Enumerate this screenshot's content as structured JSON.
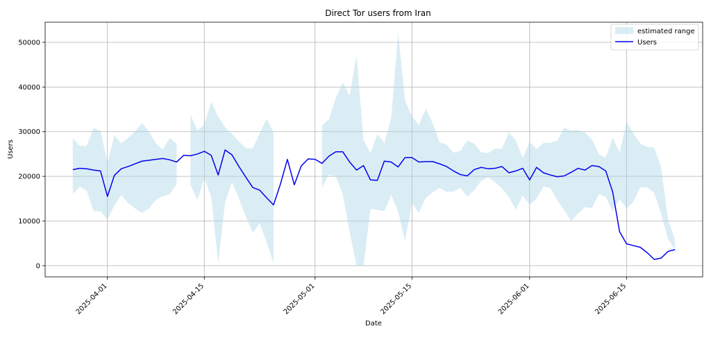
{
  "chart_data": {
    "type": "line",
    "title": "Direct Tor users from Iran",
    "xlabel": "Date",
    "ylabel": "Users",
    "ylim": [
      -2500,
      54500
    ],
    "xlim": [
      "2025-03-23",
      "2025-06-26"
    ],
    "x_ticks": [
      "2025-04-01",
      "2025-04-15",
      "2025-05-01",
      "2025-05-15",
      "2025-06-01",
      "2025-06-15"
    ],
    "y_ticks": [
      0,
      10000,
      20000,
      30000,
      40000,
      50000
    ],
    "y_tick_labels": [
      "0",
      "10000",
      "20000",
      "30000",
      "40000",
      "50000"
    ],
    "grid": true,
    "legend_position": "top-right",
    "legend": {
      "range_label": "estimated range",
      "users_label": "Users"
    },
    "colors": {
      "users_line": "#0000ee",
      "range_fill": "#add8e6"
    },
    "series": [
      {
        "name": "Users",
        "x": [
          "2025-03-27",
          "2025-03-28",
          "2025-03-29",
          "2025-03-30",
          "2025-03-31",
          "2025-04-01",
          "2025-04-02",
          "2025-04-03",
          "2025-04-04",
          "2025-04-05",
          "2025-04-06",
          "2025-04-07",
          "2025-04-08",
          "2025-04-09",
          "2025-04-10",
          "2025-04-11",
          "2025-04-12",
          "2025-04-13",
          "2025-04-14",
          "2025-04-15",
          "2025-04-16",
          "2025-04-17",
          "2025-04-18",
          "2025-04-19",
          "2025-04-20",
          "2025-04-21",
          "2025-04-22",
          "2025-04-23",
          "2025-04-24",
          "2025-04-25",
          "2025-04-26",
          "2025-04-27",
          "2025-04-28",
          "2025-04-29",
          "2025-04-30",
          "2025-05-01",
          "2025-05-02",
          "2025-05-03",
          "2025-05-04",
          "2025-05-05",
          "2025-05-06",
          "2025-05-07",
          "2025-05-08",
          "2025-05-09",
          "2025-05-10",
          "2025-05-11",
          "2025-05-12",
          "2025-05-13",
          "2025-05-14",
          "2025-05-15",
          "2025-05-16",
          "2025-05-17",
          "2025-05-18",
          "2025-05-19",
          "2025-05-20",
          "2025-05-21",
          "2025-05-22",
          "2025-05-23",
          "2025-05-24",
          "2025-05-25",
          "2025-05-26",
          "2025-05-27",
          "2025-05-28",
          "2025-05-29",
          "2025-05-30",
          "2025-05-31",
          "2025-06-01",
          "2025-06-02",
          "2025-06-03",
          "2025-06-04",
          "2025-06-05",
          "2025-06-06",
          "2025-06-07",
          "2025-06-08",
          "2025-06-09",
          "2025-06-10",
          "2025-06-11",
          "2025-06-12",
          "2025-06-13",
          "2025-06-14",
          "2025-06-15",
          "2025-06-16",
          "2025-06-17",
          "2025-06-18",
          "2025-06-19",
          "2025-06-20",
          "2025-06-21",
          "2025-06-22"
        ],
        "values": [
          21500,
          21800,
          21700,
          21400,
          21200,
          15500,
          20200,
          21700,
          22200,
          22800,
          23400,
          23600,
          23800,
          24000,
          23700,
          23200,
          24700,
          24600,
          25000,
          25600,
          24700,
          20300,
          25900,
          24800,
          22200,
          19800,
          17500,
          16900,
          15200,
          13600,
          18300,
          23800,
          18100,
          22300,
          23900,
          23800,
          22900,
          24500,
          25500,
          25500,
          23200,
          21400,
          22400,
          19200,
          19100,
          23400,
          23200,
          22100,
          24200,
          24200,
          23200,
          23300,
          23300,
          22800,
          22200,
          21200,
          20400,
          20100,
          21500,
          22000,
          21700,
          21800,
          22200,
          20800,
          21200,
          21800,
          19200,
          22000,
          20800,
          20300,
          19900,
          20100,
          20900,
          21800,
          21400,
          22400,
          22200,
          21200,
          16500,
          7600,
          4900,
          4500,
          4100,
          2900,
          1400,
          1700,
          3200,
          3600
        ]
      }
    ],
    "range": {
      "low": [
        16000,
        17700,
        16800,
        12200,
        12200,
        10300,
        13500,
        15800,
        14000,
        12800,
        11800,
        12800,
        14700,
        15600,
        16000,
        18200,
        null,
        18100,
        14700,
        19600,
        15300,
        500,
        14200,
        18700,
        15000,
        11000,
        7300,
        9500,
        5300,
        500,
        10500,
        null,
        null,
        12600,
        14000,
        null,
        17500,
        20400,
        19900,
        16000,
        7500,
        0,
        0,
        12700,
        12500,
        12200,
        15800,
        12100,
        5500,
        14000,
        11800,
        15200,
        16400,
        17400,
        16500,
        16600,
        17400,
        15500,
        16900,
        19000,
        19800,
        18700,
        17300,
        15400,
        12500,
        15700,
        13600,
        15000,
        17700,
        17400,
        14600,
        12400,
        10000,
        11700,
        13100,
        12900,
        16000,
        15400,
        12200,
        14900,
        12800,
        14300,
        17600,
        17500,
        16300,
        11600,
        6000,
        3500
      ],
      "high": [
        28500,
        26800,
        26800,
        30800,
        30200,
        23000,
        29200,
        27400,
        28600,
        30100,
        31900,
        30000,
        27400,
        26000,
        28600,
        27300,
        null,
        33800,
        30300,
        31600,
        36700,
        33400,
        31000,
        29500,
        27800,
        26300,
        26300,
        29600,
        32900,
        29800,
        null,
        null,
        36500,
        34200,
        null,
        30000,
        31400,
        32800,
        37600,
        41000,
        38000,
        47200,
        28100,
        25200,
        29400,
        27500,
        33000,
        52200,
        37000,
        33400,
        31500,
        35200,
        31800,
        27600,
        27100,
        25300,
        25700,
        28000,
        27300,
        25400,
        25200,
        26200,
        26200,
        29800,
        28100,
        24100,
        27700,
        26100,
        27500,
        27500,
        28000,
        30900,
        30200,
        30400,
        29800,
        28300,
        24900,
        24200,
        28700,
        25300,
        32200,
        29600,
        27300,
        26600,
        26400,
        22000,
        10300,
        5800
      ]
    }
  }
}
